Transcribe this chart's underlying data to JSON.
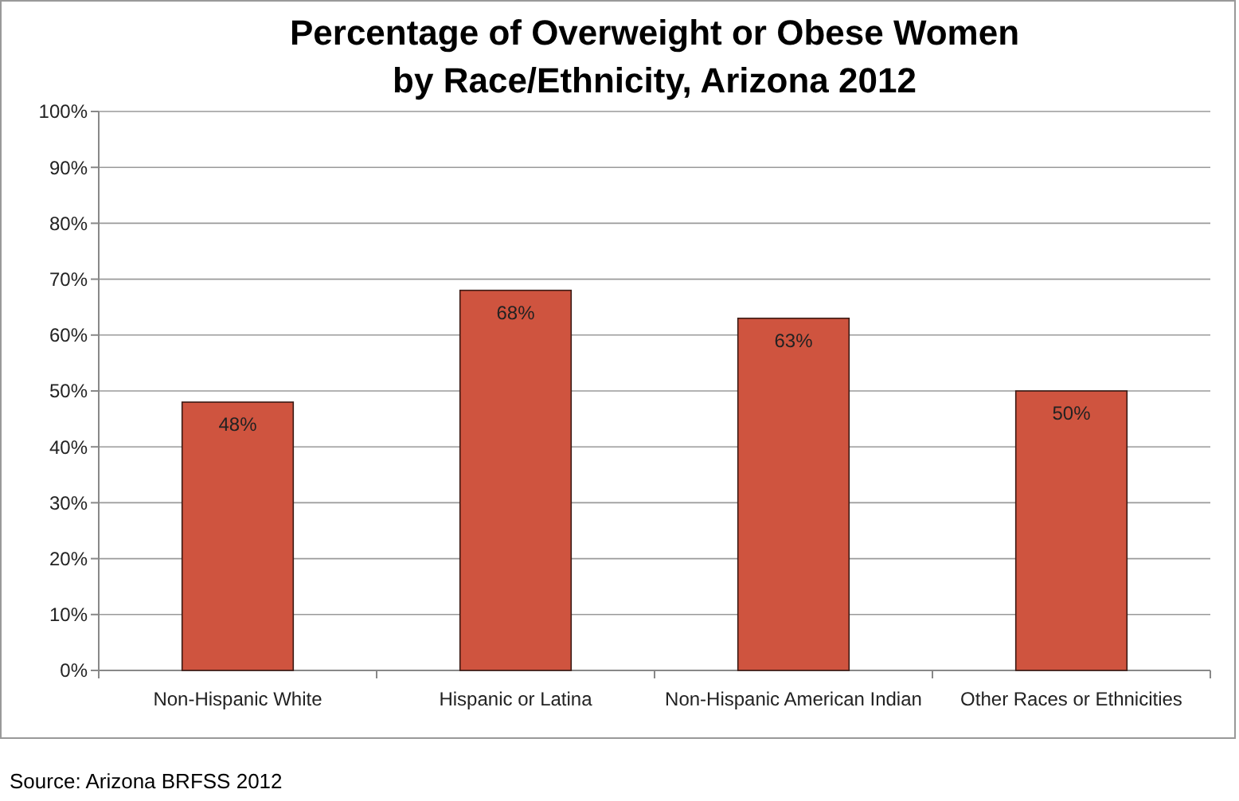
{
  "chart_data": {
    "type": "bar",
    "title": "Percentage of Overweight or Obese Women by Race/Ethnicity, Arizona 2012",
    "categories": [
      "Non-Hispanic White",
      "Hispanic or Latina",
      "Non-Hispanic American Indian",
      "Other Races or Ethnicities"
    ],
    "values": [
      48,
      68,
      63,
      50
    ],
    "value_labels": [
      "48%",
      "68%",
      "63%",
      "50%"
    ],
    "color": "#cf543f",
    "ylim": [
      0,
      100
    ],
    "yticks": [
      {
        "value": 0,
        "label": "0%"
      },
      {
        "value": 10,
        "label": "10%"
      },
      {
        "value": 20,
        "label": "20%"
      },
      {
        "value": 30,
        "label": "30%"
      },
      {
        "value": 40,
        "label": "40%"
      },
      {
        "value": 50,
        "label": "50%"
      },
      {
        "value": 60,
        "label": "60%"
      },
      {
        "value": 70,
        "label": "70%"
      },
      {
        "value": 80,
        "label": "80%"
      },
      {
        "value": 90,
        "label": "90%"
      },
      {
        "value": 100,
        "label": "100%"
      }
    ],
    "grid": "y",
    "annotations": [
      "Source: Arizona BRFSS 2012"
    ]
  }
}
